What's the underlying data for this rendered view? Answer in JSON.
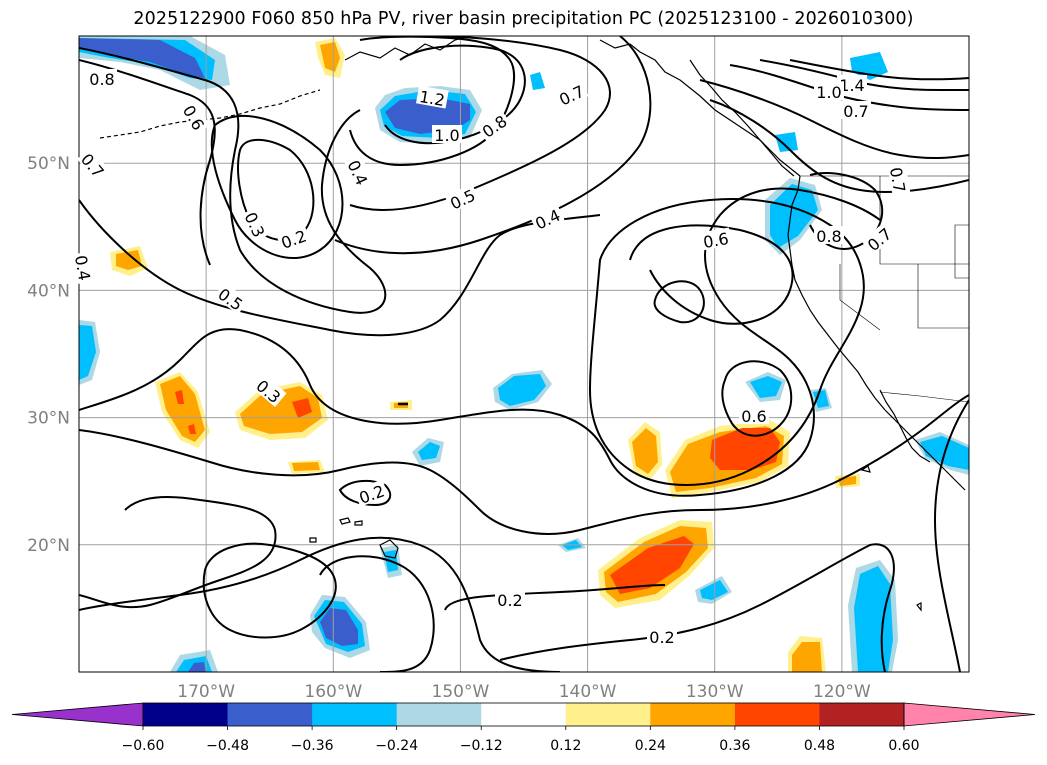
{
  "title": "2025122900 F060 850 hPa PV, river basin precipitation PC (2025123100 - 2026010300)",
  "map": {
    "extent": {
      "lon_min": -180,
      "lon_max": -110,
      "lat_min": 10,
      "lat_max": 60
    },
    "lat_ticks": [
      {
        "value": 20,
        "label": "20°N"
      },
      {
        "value": 30,
        "label": "30°N"
      },
      {
        "value": 40,
        "label": "40°N"
      },
      {
        "value": 50,
        "label": "50°N"
      }
    ],
    "lon_ticks": [
      {
        "value": -170,
        "label": "170°W"
      },
      {
        "value": -160,
        "label": "160°W"
      },
      {
        "value": -150,
        "label": "150°W"
      },
      {
        "value": -140,
        "label": "140°W"
      },
      {
        "value": -130,
        "label": "130°W"
      },
      {
        "value": -120,
        "label": "120°W"
      }
    ],
    "grid": true,
    "contour_labels": [
      "0.8",
      "0.6",
      "1.2",
      "1.0",
      "0.7",
      "0.8",
      "0.4",
      "0.5",
      "0.4",
      "0.3",
      "0.2",
      "0.5",
      "0.4",
      "0.3",
      "0.7",
      "0.6",
      "0.6",
      "0.8",
      "0.7",
      "1.4",
      "1.0",
      "0.7",
      "0.2",
      "0.2",
      "0.2",
      "0.7"
    ]
  },
  "colorbar": {
    "extend": "both",
    "colors": [
      "#9932cc",
      "#00008b",
      "#3a5fcd",
      "#00bfff",
      "#add8e6",
      "#ffffff",
      "#fff08c",
      "#ffa500",
      "#ff4500",
      "#b22222",
      "#ff83aa"
    ],
    "tick_labels": [
      "−0.60",
      "−0.48",
      "−0.36",
      "−0.24",
      "−0.12",
      "0.12",
      "0.24",
      "0.36",
      "0.48",
      "0.60"
    ]
  }
}
